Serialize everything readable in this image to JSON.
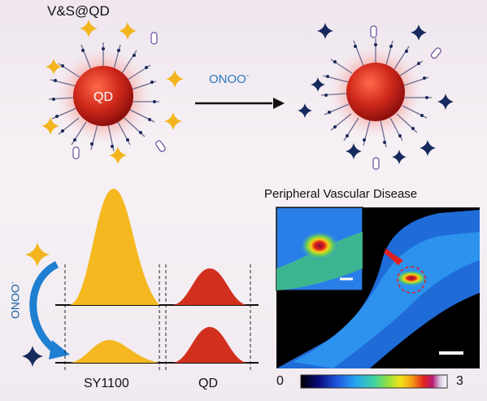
{
  "top": {
    "probe_label": "V&S@QD",
    "reaction_label": "ONOO",
    "reaction_charge": "-",
    "core_label": "QD"
  },
  "spectra": {
    "left_label": "SY1100",
    "right_label": "QD",
    "side_label": "ONOO",
    "side_charge": "-"
  },
  "imaging": {
    "title": "Peripheral Vascular Disease",
    "scale_min": "0",
    "scale_max": "3"
  },
  "colors": {
    "qd_red": "#c8231b",
    "yellow": "#f6b51a",
    "star_gold": "#f2b51e",
    "star_navy": "#172a5e",
    "arrow_blue": "#1f7fd1",
    "text_blue": "#2a79c0"
  }
}
